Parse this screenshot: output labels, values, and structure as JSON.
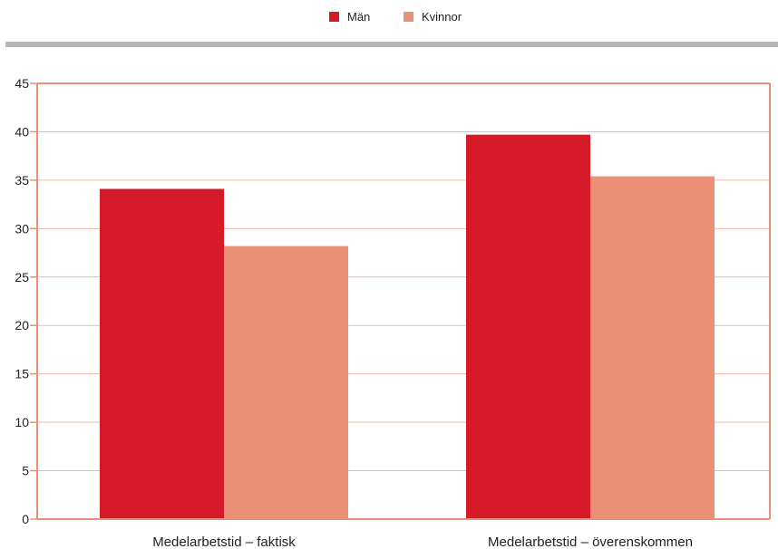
{
  "chart_data": {
    "type": "bar",
    "title": "",
    "xlabel": "",
    "ylabel": "",
    "categories": [
      "Medelarbetstid – faktisk",
      "Medelarbetstid – överenskommen"
    ],
    "series": [
      {
        "name": "Män",
        "values": [
          34.1,
          39.7
        ],
        "color": "#d71a28"
      },
      {
        "name": "Kvinnor",
        "values": [
          28.2,
          35.4
        ],
        "color": "#ea9077"
      }
    ],
    "ylim": [
      0,
      45
    ],
    "yticks": [
      0,
      5,
      10,
      15,
      20,
      25,
      30,
      35,
      40,
      45
    ],
    "legend_position": "top-center",
    "grid": true,
    "colors": {
      "grid": "#f0b7a6",
      "axis": "#ea9077",
      "separator": "#b7b7b7"
    }
  }
}
